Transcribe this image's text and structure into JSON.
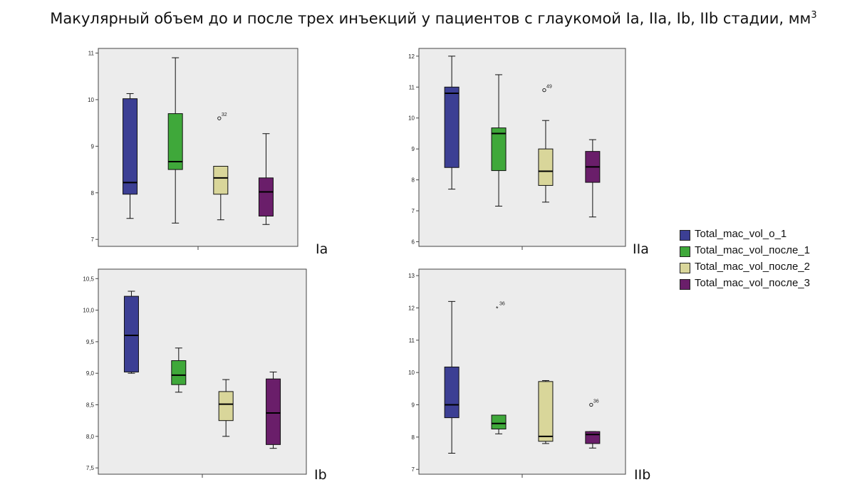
{
  "title": "Макулярный объем до и после трех инъекций у пациентов с  глаукомой Ia, IIa, Ib, IIb стадии, мм",
  "title_superscript": "3",
  "colors": {
    "o_1": "#3c3f94",
    "posle_1": "#3fa83a",
    "posle_2": "#d9d69a",
    "posle_3": "#6a1e6a",
    "plot_bg": "#ececec"
  },
  "legend": [
    {
      "label": "Total_mac_vol_o_1",
      "color": "#3c3f94"
    },
    {
      "label": "Total_mac_vol_после_1",
      "color": "#3fa83a"
    },
    {
      "label": "Total_mac_vol_после_2",
      "color": "#d9d69a"
    },
    {
      "label": "Total_mac_vol_после_3",
      "color": "#6a1e6a"
    }
  ],
  "chart_data": [
    {
      "type": "box",
      "stage": "Ia",
      "ylim": [
        6.85,
        11.1
      ],
      "yticks": [
        7,
        8,
        9,
        10,
        11
      ],
      "ytick_labels": [
        "7",
        "8",
        "9",
        "10",
        "11"
      ],
      "boxes": [
        {
          "series": "Total_mac_vol_o_1",
          "whisker_low": 7.45,
          "q1": 7.97,
          "median": 8.22,
          "q3": 10.02,
          "whisker_high": 10.13,
          "outliers": []
        },
        {
          "series": "Total_mac_vol_после_1",
          "whisker_low": 7.35,
          "q1": 8.5,
          "median": 8.67,
          "q3": 9.7,
          "whisker_high": 10.9,
          "outliers": []
        },
        {
          "series": "Total_mac_vol_после_2",
          "whisker_low": 7.42,
          "q1": 7.97,
          "median": 8.32,
          "q3": 8.57,
          "whisker_high": 8.57,
          "outliers": [
            {
              "value": 9.6,
              "label": "32"
            }
          ]
        },
        {
          "series": "Total_mac_vol_после_3",
          "whisker_low": 7.32,
          "q1": 7.5,
          "median": 8.02,
          "q3": 8.32,
          "whisker_high": 9.27,
          "outliers": []
        }
      ]
    },
    {
      "type": "box",
      "stage": "IIa",
      "ylim": [
        5.85,
        12.25
      ],
      "yticks": [
        6,
        7,
        8,
        9,
        10,
        11,
        12
      ],
      "ytick_labels": [
        "6",
        "7",
        "8",
        "9",
        "10",
        "11",
        "12"
      ],
      "boxes": [
        {
          "series": "Total_mac_vol_o_1",
          "whisker_low": 7.7,
          "q1": 8.4,
          "median": 10.8,
          "q3": 11.0,
          "whisker_high": 12.0,
          "outliers": []
        },
        {
          "series": "Total_mac_vol_после_1",
          "whisker_low": 7.15,
          "q1": 8.3,
          "median": 9.5,
          "q3": 9.68,
          "whisker_high": 11.4,
          "outliers": []
        },
        {
          "series": "Total_mac_vol_после_2",
          "whisker_low": 7.28,
          "q1": 7.82,
          "median": 8.28,
          "q3": 9.0,
          "whisker_high": 9.92,
          "outliers": [
            {
              "value": 10.9,
              "label": "49"
            }
          ]
        },
        {
          "series": "Total_mac_vol_после_3",
          "whisker_low": 6.8,
          "q1": 7.92,
          "median": 8.42,
          "q3": 8.92,
          "whisker_high": 9.3,
          "outliers": []
        }
      ]
    },
    {
      "type": "box",
      "stage": "Ib",
      "ylim": [
        7.4,
        10.65
      ],
      "yticks": [
        7.5,
        8.0,
        8.5,
        9.0,
        9.5,
        10.0,
        10.5
      ],
      "ytick_labels": [
        "7,5",
        "8,0",
        "8,5",
        "9,0",
        "9,5",
        "10,0",
        "10,5"
      ],
      "boxes": [
        {
          "series": "Total_mac_vol_o_1",
          "whisker_low": 9.0,
          "q1": 9.02,
          "median": 9.6,
          "q3": 10.22,
          "whisker_high": 10.3,
          "outliers": []
        },
        {
          "series": "Total_mac_vol_после_1",
          "whisker_low": 8.7,
          "q1": 8.82,
          "median": 8.97,
          "q3": 9.2,
          "whisker_high": 9.4,
          "outliers": []
        },
        {
          "series": "Total_mac_vol_после_2",
          "whisker_low": 8.0,
          "q1": 8.25,
          "median": 8.51,
          "q3": 8.71,
          "whisker_high": 8.9,
          "outliers": []
        },
        {
          "series": "Total_mac_vol_после_3",
          "whisker_low": 7.81,
          "q1": 7.87,
          "median": 8.37,
          "q3": 8.91,
          "whisker_high": 9.02,
          "outliers": []
        }
      ]
    },
    {
      "type": "box",
      "stage": "IIb",
      "ylim": [
        6.85,
        13.2
      ],
      "yticks": [
        7,
        8,
        9,
        10,
        11,
        12,
        13
      ],
      "ytick_labels": [
        "7",
        "8",
        "9",
        "10",
        "11",
        "12",
        "13"
      ],
      "boxes": [
        {
          "series": "Total_mac_vol_o_1",
          "whisker_low": 7.5,
          "q1": 8.6,
          "median": 9.0,
          "q3": 10.17,
          "whisker_high": 12.2,
          "outliers": []
        },
        {
          "series": "Total_mac_vol_после_1",
          "whisker_low": 8.1,
          "q1": 8.25,
          "median": 8.42,
          "q3": 8.68,
          "whisker_high": 8.68,
          "outliers": [],
          "extremes": [
            {
              "value": 12.0,
              "label": "36"
            }
          ]
        },
        {
          "series": "Total_mac_vol_после_2",
          "whisker_low": 7.8,
          "q1": 7.87,
          "median": 8.02,
          "q3": 9.72,
          "whisker_high": 9.75,
          "outliers": []
        },
        {
          "series": "Total_mac_vol_после_3",
          "whisker_low": 7.66,
          "q1": 7.8,
          "median": 8.08,
          "q3": 8.17,
          "whisker_high": 8.17,
          "outliers": [
            {
              "value": 9.0,
              "label": "36"
            }
          ]
        }
      ]
    }
  ]
}
